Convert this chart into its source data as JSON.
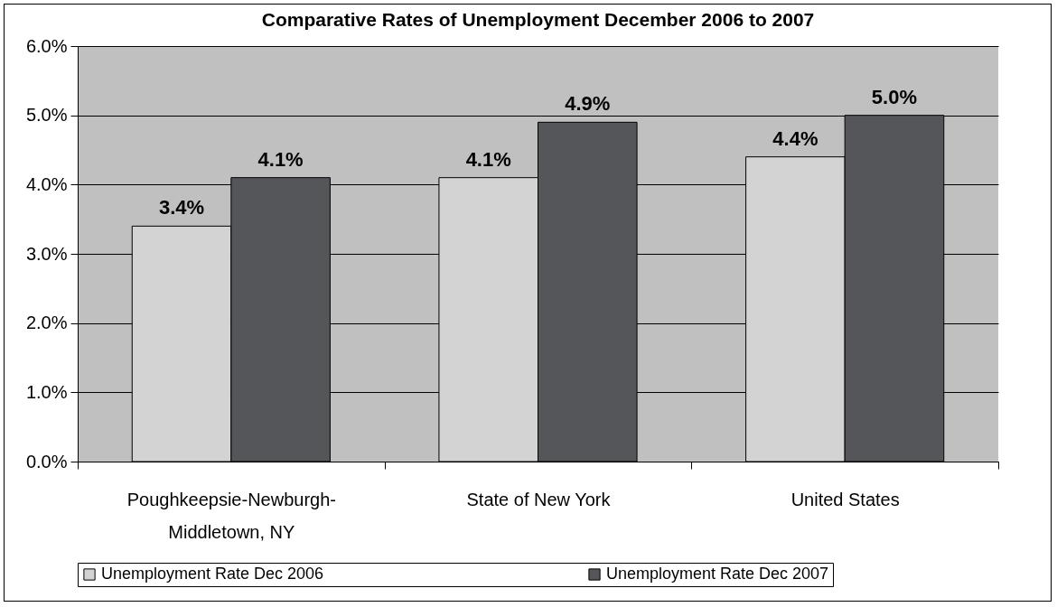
{
  "chart_data": {
    "type": "bar",
    "title": "Comparative Rates of Unemployment December 2006 to 2007",
    "categories": [
      "Poughkeepsie-Newburgh-Middletown, NY",
      "State of New York",
      "United States"
    ],
    "series": [
      {
        "name": "Unemployment Rate Dec 2006",
        "color": "#d3d3d3",
        "values": [
          3.4,
          4.1,
          4.4
        ],
        "value_labels": [
          "3.4%",
          "4.1%",
          "4.4%"
        ]
      },
      {
        "name": "Unemployment Rate Dec 2007",
        "color": "#555659",
        "values": [
          4.1,
          4.9,
          5.0
        ],
        "value_labels": [
          "4.1%",
          "4.9%",
          "5.0%"
        ]
      }
    ],
    "ylim": [
      0,
      6
    ],
    "yticks": [
      {
        "value": 0,
        "label": "0.0%"
      },
      {
        "value": 1,
        "label": "1.0%"
      },
      {
        "value": 2,
        "label": "2.0%"
      },
      {
        "value": 3,
        "label": "3.0%"
      },
      {
        "value": 4,
        "label": "4.0%"
      },
      {
        "value": 5,
        "label": "5.0%"
      },
      {
        "value": 6,
        "label": "6.0%"
      }
    ],
    "grid": "y",
    "legend": "bottom"
  }
}
